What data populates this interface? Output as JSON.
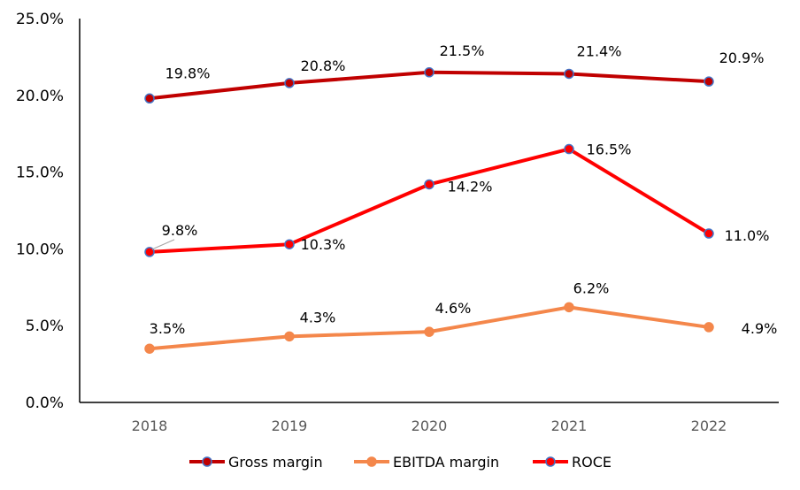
{
  "chart_data": {
    "type": "line",
    "title": "",
    "xlabel": "",
    "ylabel": "",
    "categories": [
      "2018",
      "2019",
      "2020",
      "2021",
      "2022"
    ],
    "y_ticks": [
      "0.0%",
      "5.0%",
      "10.0%",
      "15.0%",
      "20.0%",
      "25.0%"
    ],
    "ylim": [
      0,
      25
    ],
    "grid": false,
    "legend_position": "bottom",
    "series": [
      {
        "name": "Gross margin",
        "values": [
          19.8,
          20.8,
          21.5,
          21.4,
          20.9
        ],
        "labels": [
          "19.8%",
          "20.8%",
          "21.5%",
          "21.4%",
          "20.9%"
        ],
        "color": "#C00000",
        "marker_color": "#4472C4"
      },
      {
        "name": "EBITDA margin",
        "values": [
          3.5,
          4.3,
          4.6,
          6.2,
          4.9
        ],
        "labels": [
          "3.5%",
          "4.3%",
          "4.6%",
          "6.2%",
          "4.9%"
        ],
        "color": "#F4874B",
        "marker_color": "#F4874B"
      },
      {
        "name": "ROCE",
        "values": [
          9.8,
          10.3,
          14.2,
          16.5,
          11.0
        ],
        "labels": [
          "9.8%",
          "10.3%",
          "14.2%",
          "16.5%",
          "11.0%"
        ],
        "color": "#FF0000",
        "marker_color": "#4472C4"
      }
    ]
  }
}
